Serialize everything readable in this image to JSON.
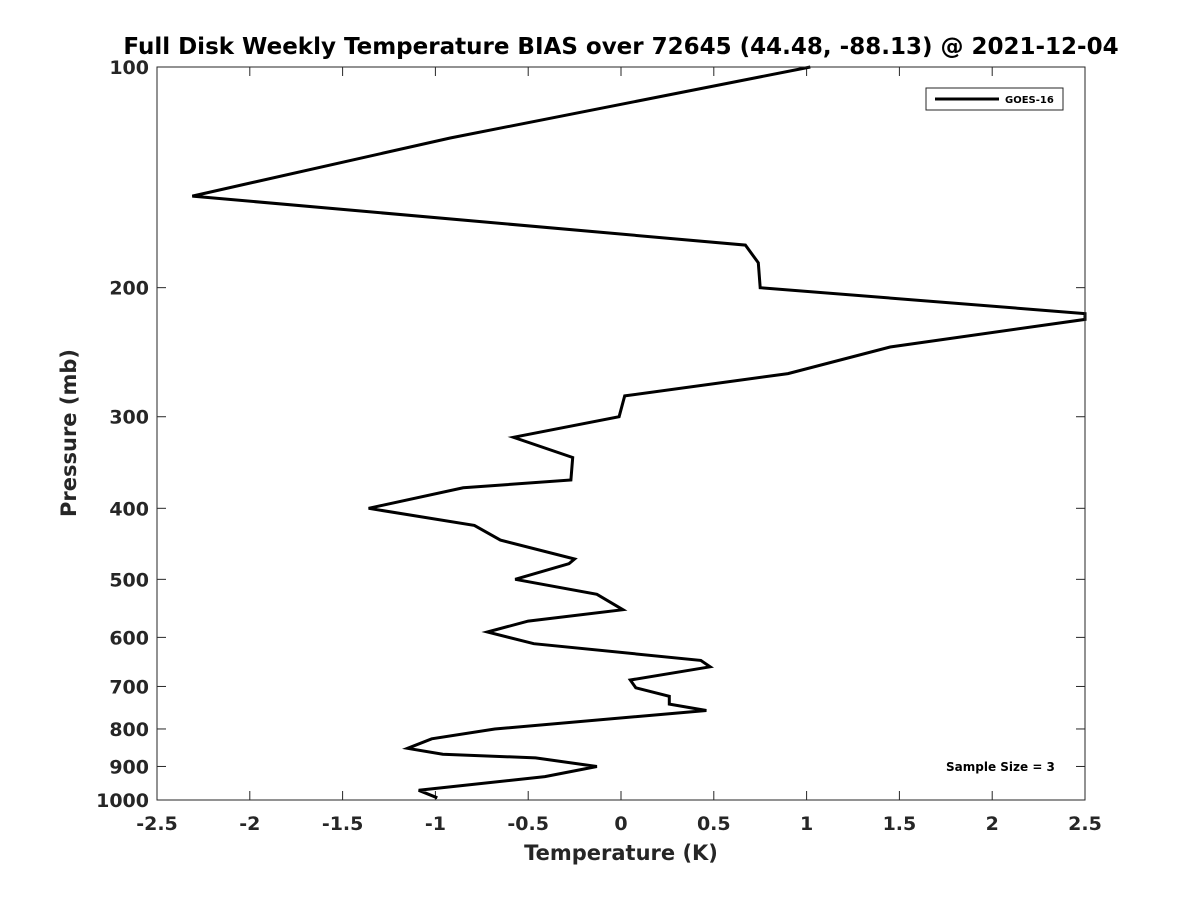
{
  "chart_data": {
    "type": "line",
    "title": "Full Disk Weekly Temperature BIAS over 72645 (44.48, -88.13) @ 2021-12-04",
    "xlabel": "Temperature (K)",
    "ylabel": "Pressure (mb)",
    "xlim": [
      -2.5,
      2.5
    ],
    "ylim": [
      100,
      1000
    ],
    "y_scale": "log",
    "y_reversed": true,
    "grid": false,
    "legend_position": "top-right",
    "x_ticks": [
      -2.5,
      -2,
      -1.5,
      -1,
      -0.5,
      0,
      0.5,
      1,
      1.5,
      2,
      2.5
    ],
    "x_tick_labels": [
      "-2.5",
      "-2",
      "-1.5",
      "-1",
      "-0.5",
      "0",
      "0.5",
      "1",
      "1.5",
      "2",
      "2.5"
    ],
    "y_ticks": [
      100,
      200,
      300,
      400,
      500,
      600,
      700,
      800,
      900,
      1000
    ],
    "y_tick_labels": [
      "100",
      "200",
      "300",
      "400",
      "500",
      "600",
      "700",
      "800",
      "900",
      "1000"
    ],
    "series": [
      {
        "name": "GOES-16",
        "color": "#000000",
        "points": [
          [
            1.02,
            100
          ],
          [
            -0.92,
            125
          ],
          [
            -2.31,
            150
          ],
          [
            0.67,
            175
          ],
          [
            0.74,
            185
          ],
          [
            0.75,
            200
          ],
          [
            2.5,
            217
          ],
          [
            2.5,
            221
          ],
          [
            1.45,
            241
          ],
          [
            0.9,
            262
          ],
          [
            0.02,
            281
          ],
          [
            -0.01,
            300
          ],
          [
            -0.58,
            320
          ],
          [
            -0.26,
            341
          ],
          [
            -0.27,
            366
          ],
          [
            -0.85,
            375
          ],
          [
            -1.36,
            400
          ],
          [
            -0.79,
            422
          ],
          [
            -0.65,
            442
          ],
          [
            -0.25,
            469
          ],
          [
            -0.28,
            476
          ],
          [
            -0.57,
            500
          ],
          [
            -0.13,
            524
          ],
          [
            0.01,
            550
          ],
          [
            -0.5,
            570
          ],
          [
            -0.72,
            590
          ],
          [
            -0.47,
            612
          ],
          [
            0.43,
            645
          ],
          [
            0.48,
            658
          ],
          [
            0.05,
            686
          ],
          [
            0.08,
            703
          ],
          [
            0.26,
            722
          ],
          [
            0.26,
            740
          ],
          [
            0.46,
            755
          ],
          [
            -0.68,
            800
          ],
          [
            -1.02,
            825
          ],
          [
            -1.15,
            850
          ],
          [
            -0.96,
            866
          ],
          [
            -0.46,
            876
          ],
          [
            -0.13,
            900
          ],
          [
            -0.41,
            929
          ],
          [
            -1.09,
            970
          ],
          [
            -0.99,
            993
          ]
        ]
      }
    ],
    "annotations": [
      {
        "text": "Sample Size = 3",
        "x": 2.0,
        "y": 905
      }
    ]
  }
}
